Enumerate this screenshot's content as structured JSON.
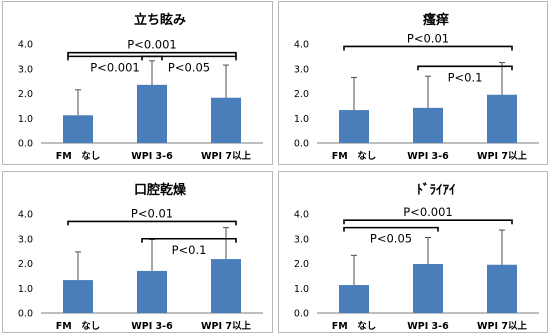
{
  "chart_data": [
    {
      "type": "bar",
      "title": "立ち眩み",
      "categories": [
        "FM　なし",
        "WPI 3-6",
        "WPI 7以上"
      ],
      "values": [
        1.12,
        2.35,
        1.83
      ],
      "error_upper": [
        2.15,
        3.32,
        3.15
      ],
      "ylim": [
        0,
        4
      ],
      "yticks": [
        "0.0",
        "1.0",
        "2.0",
        "3.0",
        "4.0"
      ],
      "xlabel": "",
      "ylabel": "",
      "annotations": [
        {
          "text": "P<0.001",
          "from": 0,
          "to": 2,
          "y": 3.65
        },
        {
          "text": "P<0.001",
          "from": 0,
          "to": 1,
          "y": 3.5
        },
        {
          "text": "P<0.05",
          "from": 1,
          "to": 2,
          "y": 3.5
        }
      ]
    },
    {
      "type": "bar",
      "title": "瘙痒",
      "categories": [
        "FM　なし",
        "WPI 3-6",
        "WPI 7以上"
      ],
      "values": [
        1.33,
        1.42,
        1.95
      ],
      "error_upper": [
        2.65,
        2.7,
        3.25
      ],
      "ylim": [
        0,
        4
      ],
      "yticks": [
        "0.0",
        "1.0",
        "2.0",
        "3.0",
        "4.0"
      ],
      "xlabel": "",
      "ylabel": "",
      "annotations": [
        {
          "text": "P<0.01",
          "from": 0,
          "to": 2,
          "y": 3.9
        },
        {
          "text": "P<0.1",
          "from": 1,
          "to": 2,
          "y": 3.1
        }
      ]
    },
    {
      "type": "bar",
      "title": "口腔乾燥",
      "categories": [
        "FM　なし",
        "WPI 3-6",
        "WPI 7以上"
      ],
      "values": [
        1.33,
        1.7,
        2.18
      ],
      "error_upper": [
        2.47,
        2.97,
        3.45
      ],
      "ylim": [
        0,
        4
      ],
      "yticks": [
        "0.0",
        "1.0",
        "2.0",
        "3.0",
        "4.0"
      ],
      "xlabel": "",
      "ylabel": "",
      "annotations": [
        {
          "text": "P<0.01",
          "from": 0,
          "to": 2,
          "y": 3.7
        },
        {
          "text": "P<0.1",
          "from": 1,
          "to": 2,
          "y": 3.0
        }
      ]
    },
    {
      "type": "bar",
      "title": "ﾄﾞﾗｲｱｲ",
      "categories": [
        "FM　なし",
        "WPI 3-6",
        "WPI 7以上"
      ],
      "values": [
        1.13,
        1.98,
        1.95
      ],
      "error_upper": [
        2.33,
        3.05,
        3.35
      ],
      "ylim": [
        0,
        4
      ],
      "yticks": [
        "0.0",
        "1.0",
        "2.0",
        "3.0",
        "4.0"
      ],
      "xlabel": "",
      "ylabel": "",
      "annotations": [
        {
          "text": "P<0.001",
          "from": 0,
          "to": 2,
          "y": 3.75
        },
        {
          "text": "P<0.05",
          "from": 0,
          "to": 1,
          "y": 3.45
        }
      ]
    }
  ]
}
